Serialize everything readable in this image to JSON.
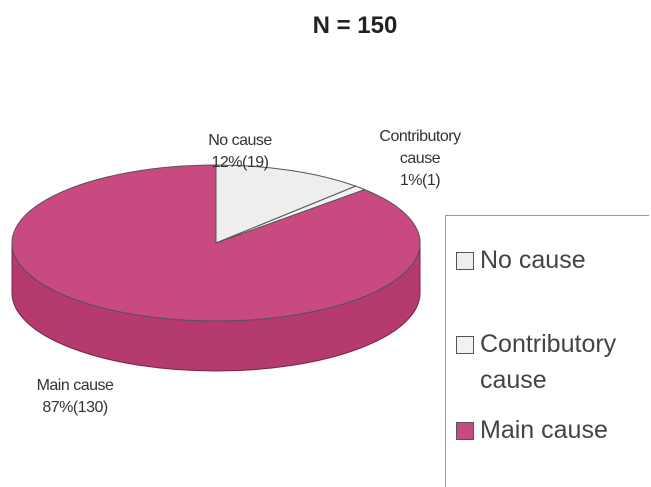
{
  "chart_data": {
    "type": "pie",
    "title": "N = 150",
    "categories": [
      "No cause",
      "Contributory cause",
      "Main cause"
    ],
    "values": [
      12,
      1,
      87
    ],
    "value_labels": [
      "12%(19)",
      "1%(1)",
      "87%(130)"
    ],
    "colors": [
      "#eeeeee",
      "#f2f2f2",
      "#c94a80"
    ],
    "legend": "right"
  }
}
